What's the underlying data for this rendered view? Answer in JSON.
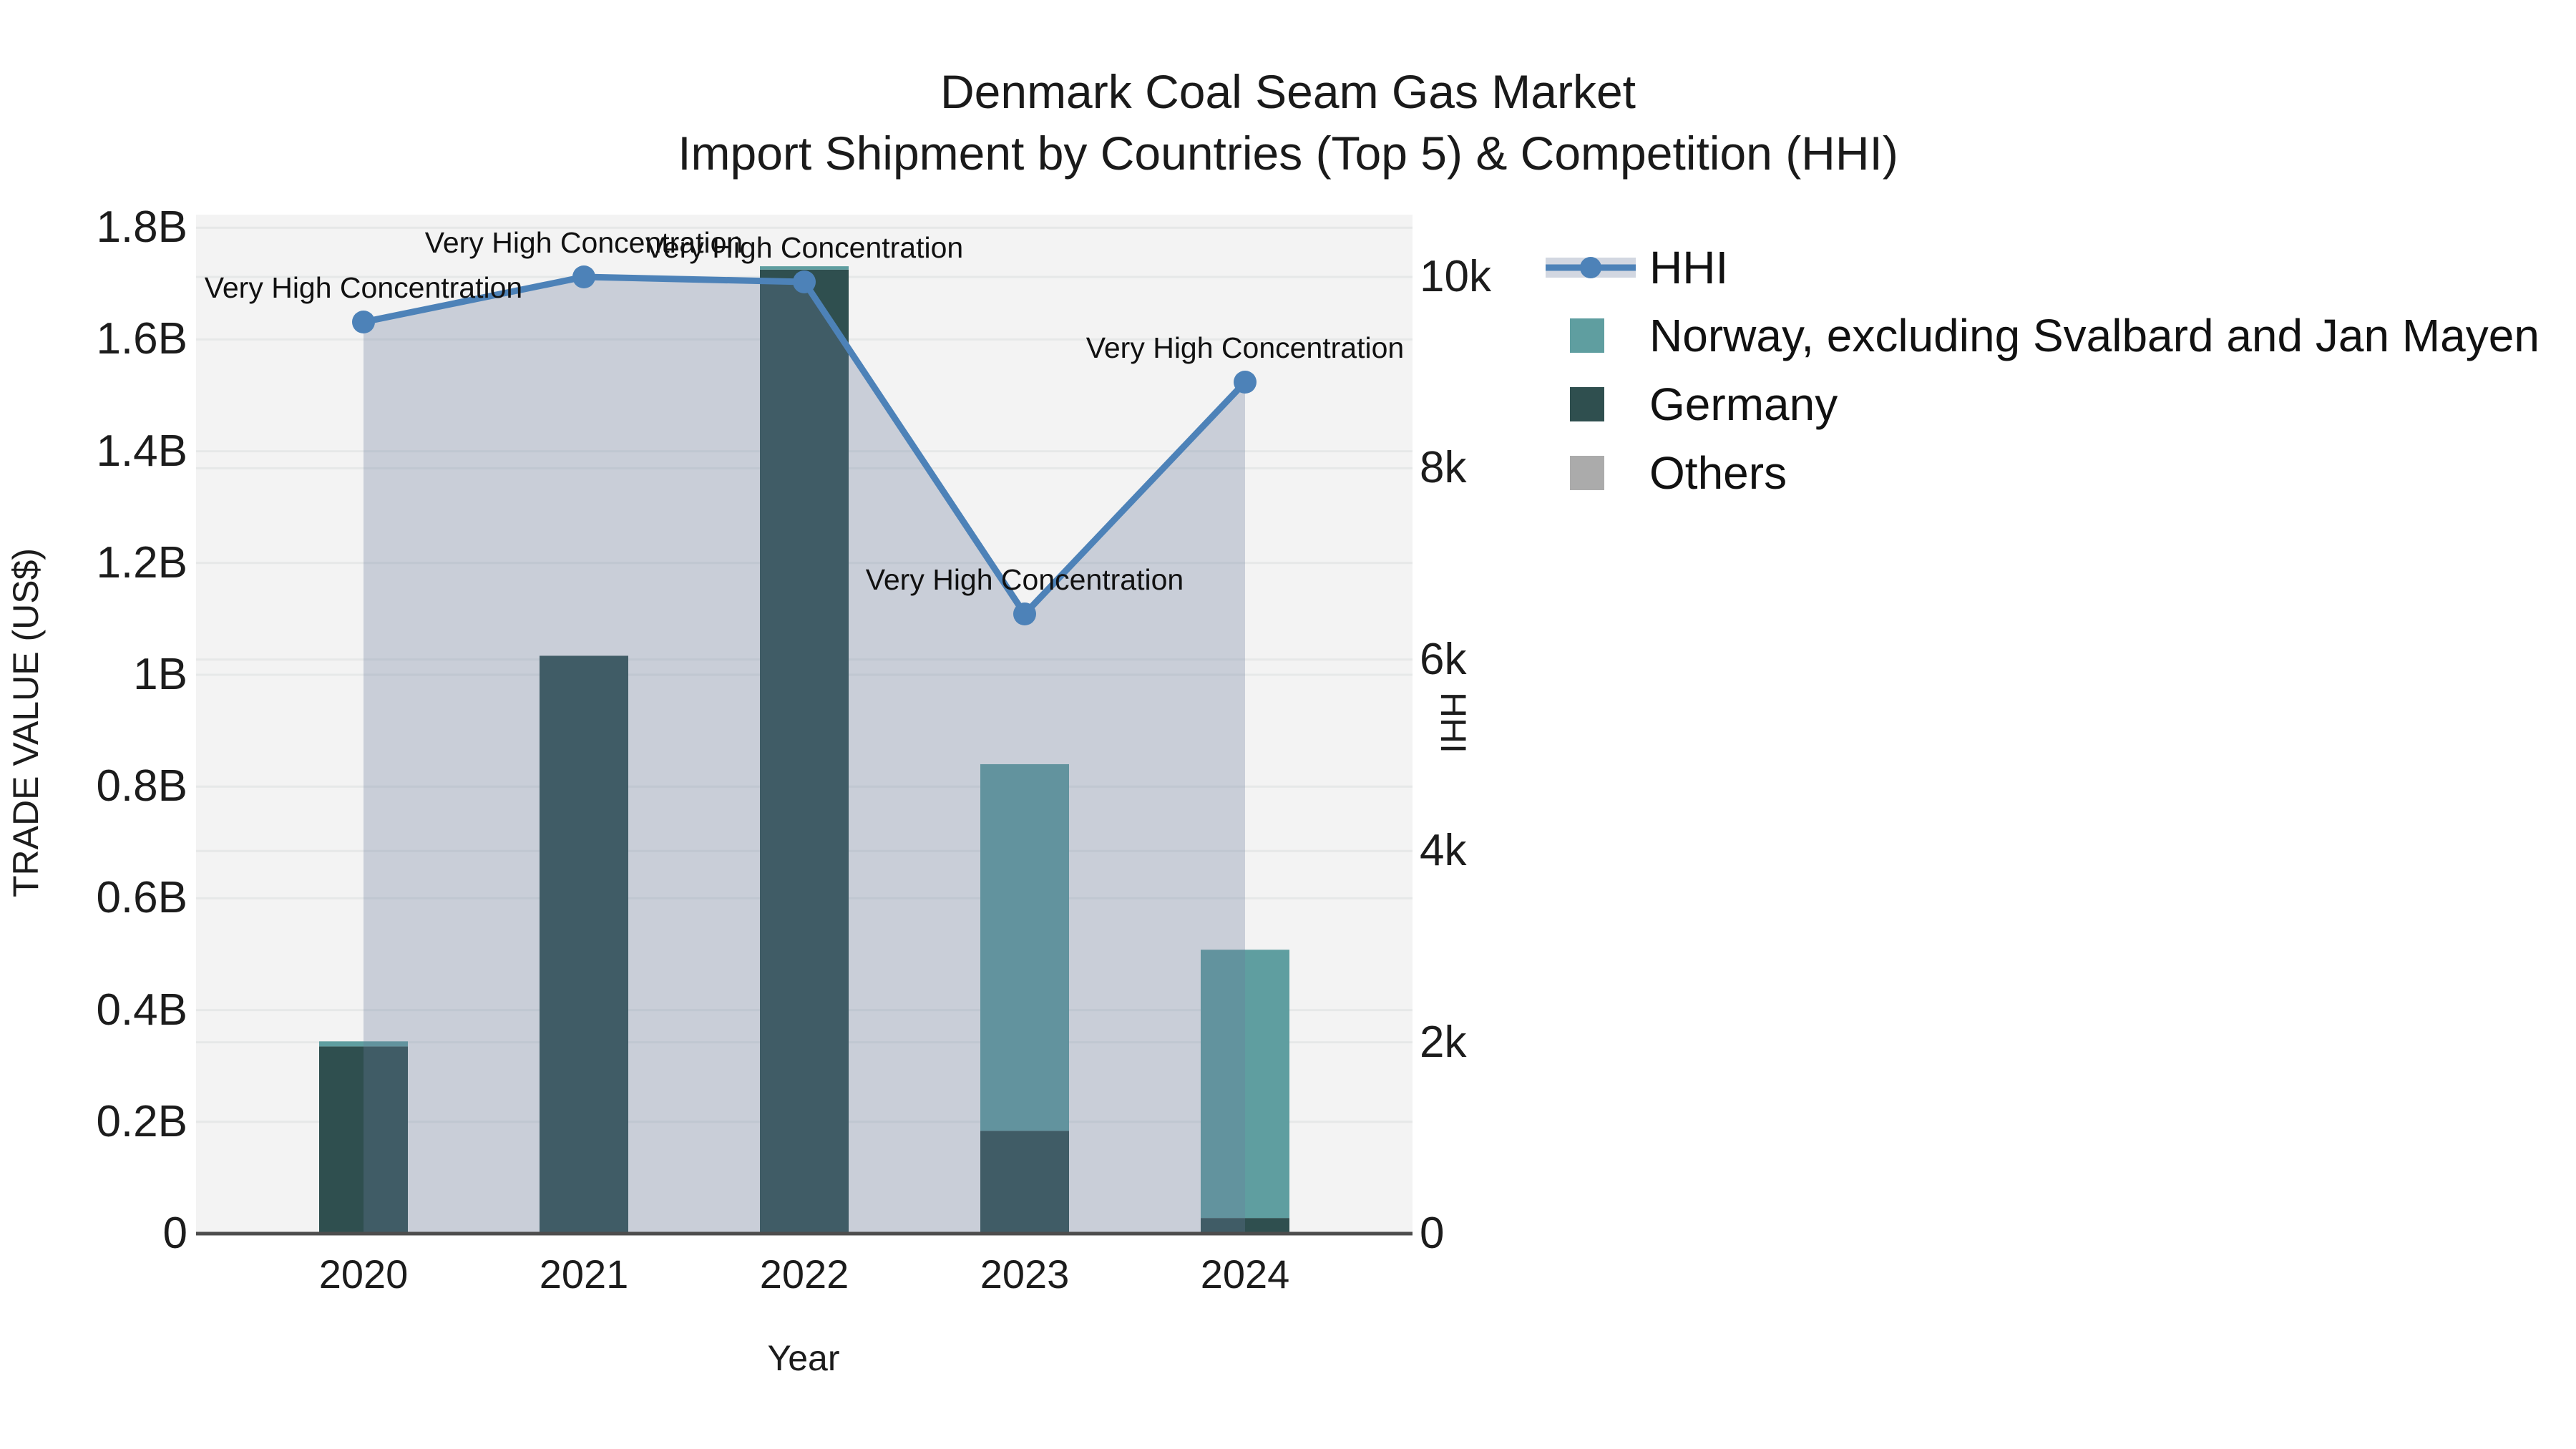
{
  "title": {
    "line1": "Denmark Coal Seam Gas Market",
    "line2": "Import Shipment by Countries (Top 5) & Competition (HHI)"
  },
  "chart_data": {
    "type": "bar+line",
    "categories": [
      "2020",
      "2021",
      "2022",
      "2023",
      "2024"
    ],
    "bar_value_unit": "US$ billions (left axis)",
    "series": [
      {
        "name": "HHI",
        "type": "line",
        "axis": "right",
        "color": "#4d82b8",
        "fill_color": "rgba(105,123,155,0.30)",
        "marker": "circle",
        "values": [
          9530,
          10000,
          9950,
          6480,
          8900
        ]
      },
      {
        "name": "Norway, excluding Svalbard and Jan Mayen",
        "type": "bar",
        "stack_index": 1,
        "color": "#5f9ea0",
        "values": [
          0.009,
          0,
          0.006,
          0.656,
          0.48
        ]
      },
      {
        "name": "Germany",
        "type": "bar",
        "stack_index": 0,
        "color": "#2f4f4f",
        "values": [
          0.335,
          1.034,
          1.725,
          0.184,
          0.028
        ]
      },
      {
        "name": "Others",
        "type": "bar",
        "stack_index": 2,
        "color": "#ababab",
        "values": [
          0,
          0,
          0,
          0,
          0
        ]
      }
    ],
    "annotations": [
      {
        "category_index": 0,
        "label": "Very High Concentration"
      },
      {
        "category_index": 1,
        "label": "Very High Concentration"
      },
      {
        "category_index": 2,
        "label": "Very High Concentration"
      },
      {
        "category_index": 3,
        "label": "Very High Concentration"
      },
      {
        "category_index": 4,
        "label": "Very High Concentration"
      }
    ],
    "axes": {
      "left": {
        "title": "TRADE VALUE (US$)",
        "range": [
          0,
          1.8
        ],
        "ticks": [
          {
            "label": "1.8B",
            "value": 1.8
          },
          {
            "label": "1.6B",
            "value": 1.6
          },
          {
            "label": "1.4B",
            "value": 1.4
          },
          {
            "label": "1.2B",
            "value": 1.2
          },
          {
            "label": "1B",
            "value": 1.0
          },
          {
            "label": "0.8B",
            "value": 0.8
          },
          {
            "label": "0.6B",
            "value": 0.6
          },
          {
            "label": "0.4B",
            "value": 0.4
          },
          {
            "label": "0.2B",
            "value": 0.2
          },
          {
            "label": "0",
            "value": 0
          }
        ]
      },
      "right": {
        "title": "HHI",
        "range": [
          0,
          10000
        ],
        "ticks": [
          {
            "label": "10k",
            "value": 10000
          },
          {
            "label": "8k",
            "value": 8000
          },
          {
            "label": "6k",
            "value": 6000
          },
          {
            "label": "4k",
            "value": 4000
          },
          {
            "label": "2k",
            "value": 2000
          },
          {
            "label": "0",
            "value": 0
          }
        ]
      },
      "x": {
        "title": "Year"
      }
    },
    "legend": [
      {
        "label": "HHI",
        "marker": "line",
        "color": "#4d82b8",
        "band_color": "rgba(105,123,155,0.30)"
      },
      {
        "label": "Norway, excluding Svalbard and Jan Mayen",
        "marker": "square",
        "color": "#5f9ea0"
      },
      {
        "label": "Germany",
        "marker": "square",
        "color": "#2f4f4f"
      },
      {
        "label": "Others",
        "marker": "square",
        "color": "#ababab"
      }
    ],
    "style": {
      "plot_bg": "#f3f3f3",
      "grid_color": "#e6e8e8",
      "axis_line_color": "#4d4d4d",
      "text_color": "#1a1a1a"
    }
  }
}
